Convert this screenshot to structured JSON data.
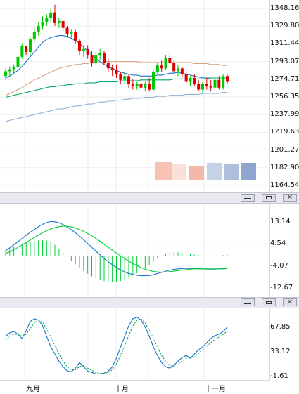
{
  "price_axis": [
    "1348.16",
    "1329.80",
    "1311.44",
    "1293.07",
    "1274.71",
    "1256.35",
    "1237.99",
    "1219.63",
    "1201.27",
    "1182.90",
    "1164.54"
  ],
  "macd_axis": [
    "13.14",
    "4.54",
    "-4.07",
    "-12.67"
  ],
  "osc_axis": [
    "67.85",
    "33.12",
    "-1.61"
  ],
  "x_labels": [
    "九月",
    "十月",
    "十一月"
  ],
  "colors": {
    "up": "#00c800",
    "down": "#e00000",
    "ma_short": "#1a73c9",
    "ma_mid": "#d9a27a",
    "ma_long1": "#00aa66",
    "ma_long2": "#8fb0d8",
    "macd": "#1a73c9",
    "signal": "#00cc33",
    "hist": "#00cc33",
    "osc_main": "#1a73c9",
    "osc_signal": "#00aa44"
  },
  "icons": {
    "minimize": "minimize-icon",
    "maximize": "maximize-icon",
    "close": "close-icon"
  },
  "chart_data": [
    {
      "type": "candlestick",
      "x_labels": [
        "九月",
        "十月",
        "十一月"
      ],
      "ylim": [
        1164.54,
        1348.16
      ],
      "y_ticks": [
        1348.16,
        1329.8,
        1311.44,
        1293.07,
        1274.71,
        1256.35,
        1237.99,
        1219.63,
        1201.27,
        1182.9,
        1164.54
      ],
      "ohlc": [
        [
          1278,
          1286,
          1274,
          1283
        ],
        [
          1283,
          1288,
          1278,
          1285
        ],
        [
          1285,
          1290,
          1280,
          1287
        ],
        [
          1287,
          1300,
          1285,
          1298
        ],
        [
          1298,
          1312,
          1296,
          1309
        ],
        [
          1309,
          1308,
          1300,
          1303
        ],
        [
          1303,
          1318,
          1300,
          1316
        ],
        [
          1316,
          1328,
          1313,
          1324
        ],
        [
          1324,
          1334,
          1320,
          1330
        ],
        [
          1330,
          1340,
          1326,
          1334
        ],
        [
          1334,
          1342,
          1330,
          1338
        ],
        [
          1338,
          1348,
          1334,
          1344
        ],
        [
          1344,
          1352,
          1330,
          1333
        ],
        [
          1333,
          1338,
          1328,
          1335
        ],
        [
          1335,
          1336,
          1325,
          1328
        ],
        [
          1328,
          1330,
          1318,
          1322
        ],
        [
          1322,
          1326,
          1316,
          1324
        ],
        [
          1324,
          1326,
          1312,
          1314
        ],
        [
          1314,
          1316,
          1300,
          1304
        ],
        [
          1304,
          1310,
          1298,
          1306
        ],
        [
          1306,
          1310,
          1296,
          1300
        ],
        [
          1300,
          1304,
          1288,
          1292
        ],
        [
          1292,
          1303,
          1290,
          1300
        ],
        [
          1300,
          1306,
          1295,
          1302
        ],
        [
          1302,
          1304,
          1290,
          1292
        ],
        [
          1292,
          1296,
          1282,
          1286
        ],
        [
          1286,
          1290,
          1278,
          1284
        ],
        [
          1284,
          1290,
          1276,
          1280
        ],
        [
          1280,
          1282,
          1270,
          1274
        ],
        [
          1274,
          1282,
          1270,
          1278
        ],
        [
          1278,
          1280,
          1266,
          1270
        ],
        [
          1270,
          1275,
          1264,
          1268
        ],
        [
          1268,
          1272,
          1264,
          1270
        ],
        [
          1270,
          1273,
          1262,
          1266
        ],
        [
          1266,
          1272,
          1262,
          1270
        ],
        [
          1270,
          1276,
          1262,
          1264
        ],
        [
          1264,
          1284,
          1262,
          1282
        ],
        [
          1282,
          1292,
          1280,
          1289
        ],
        [
          1289,
          1294,
          1282,
          1286
        ],
        [
          1286,
          1300,
          1284,
          1297
        ],
        [
          1297,
          1302,
          1290,
          1292
        ],
        [
          1292,
          1294,
          1280,
          1283
        ],
        [
          1283,
          1290,
          1278,
          1286
        ],
        [
          1286,
          1288,
          1276,
          1280
        ],
        [
          1280,
          1284,
          1270,
          1272
        ],
        [
          1272,
          1278,
          1268,
          1276
        ],
        [
          1276,
          1280,
          1268,
          1270
        ],
        [
          1270,
          1274,
          1262,
          1264
        ],
        [
          1264,
          1272,
          1260,
          1270
        ],
        [
          1270,
          1276,
          1264,
          1268
        ],
        [
          1268,
          1274,
          1262,
          1266
        ],
        [
          1266,
          1276,
          1264,
          1274
        ],
        [
          1274,
          1278,
          1264,
          1266
        ],
        [
          1266,
          1280,
          1264,
          1278
        ],
        [
          1278,
          1280,
          1270,
          1272
        ]
      ],
      "series": [
        {
          "kind": "ma",
          "color": "ma_short",
          "values": [
            1276,
            1278,
            1281,
            1284,
            1288,
            1293,
            1298,
            1303,
            1308,
            1313,
            1316,
            1318,
            1319,
            1320,
            1320,
            1319,
            1317,
            1315,
            1312,
            1308,
            1304,
            1300,
            1296,
            1293,
            1290,
            1288,
            1286,
            1284,
            1282,
            1281,
            1280,
            1279,
            1279,
            1278,
            1278,
            1278,
            1278,
            1279,
            1279,
            1280,
            1281,
            1281,
            1282,
            1281,
            1280,
            1279,
            1278,
            1277,
            1276,
            1276,
            1276,
            1276,
            1276,
            1276,
            1276
          ]
        },
        {
          "kind": "ma",
          "color": "ma_mid",
          "values": [
            1258,
            1260,
            1262,
            1264,
            1266,
            1269,
            1271,
            1274,
            1276,
            1278,
            1280,
            1282,
            1284,
            1286,
            1287,
            1288,
            1289,
            1290,
            1290,
            1291,
            1291,
            1292,
            1292,
            1292,
            1293,
            1293,
            1293,
            1293,
            1293,
            1293,
            1293,
            1293,
            1293,
            1292,
            1292,
            1292,
            1292,
            1292,
            1292,
            1292,
            1292,
            1292,
            1292,
            1292,
            1292,
            1292,
            1291,
            1291,
            1291,
            1291,
            1290,
            1290,
            1290,
            1289,
            1289
          ]
        },
        {
          "kind": "ma",
          "color": "ma_long1",
          "values": [
            1256,
            1257,
            1258,
            1259,
            1260,
            1261,
            1262,
            1263,
            1264,
            1265,
            1266,
            1267,
            1267,
            1268,
            1268,
            1269,
            1269,
            1270,
            1270,
            1270,
            1271,
            1271,
            1271,
            1272,
            1272,
            1272,
            1272,
            1272,
            1273,
            1273,
            1273,
            1273,
            1273,
            1274,
            1274,
            1274,
            1274,
            1274,
            1274,
            1274,
            1274,
            1275,
            1275,
            1275,
            1275,
            1275,
            1275,
            1275,
            1275,
            1275,
            1276,
            1276,
            1276,
            1276,
            1276
          ]
        },
        {
          "kind": "ma",
          "color": "ma_long2",
          "values": [
            1231,
            1232,
            1233,
            1234,
            1235,
            1236,
            1237,
            1238,
            1239,
            1240,
            1241,
            1242,
            1243,
            1244,
            1244,
            1245,
            1246,
            1247,
            1247,
            1248,
            1249,
            1249,
            1250,
            1251,
            1251,
            1252,
            1252,
            1253,
            1253,
            1254,
            1254,
            1255,
            1255,
            1255,
            1256,
            1256,
            1256,
            1257,
            1257,
            1257,
            1258,
            1258,
            1258,
            1258,
            1259,
            1259,
            1259,
            1259,
            1260,
            1260,
            1260,
            1260,
            1260,
            1261,
            1261
          ]
        }
      ]
    },
    {
      "type": "macd",
      "ylim": [
        -12.67,
        13.14
      ],
      "y_ticks": [
        13.14,
        4.54,
        -4.07,
        -12.67
      ],
      "macd": [
        2.0,
        3.0,
        4.2,
        5.4,
        6.7,
        7.9,
        9.1,
        10.2,
        11.3,
        12.2,
        12.9,
        13.3,
        13.2,
        12.8,
        12.1,
        11.2,
        10.1,
        8.9,
        7.6,
        6.2,
        4.7,
        3.2,
        1.7,
        0.3,
        -1.1,
        -2.4,
        -3.6,
        -4.7,
        -5.6,
        -6.4,
        -7.0,
        -7.4,
        -7.7,
        -7.9,
        -7.9,
        -7.8,
        -7.5,
        -7.0,
        -6.6,
        -6.1,
        -5.7,
        -5.4,
        -5.2,
        -5.1,
        -5.0,
        -5.0,
        -5.0,
        -5.1,
        -5.2,
        -5.3,
        -5.3,
        -5.3,
        -5.2,
        -5.1,
        -4.9
      ],
      "signal": [
        0.8,
        1.5,
        2.3,
        3.2,
        4.1,
        5.1,
        6.1,
        7.1,
        8.0,
        8.9,
        9.7,
        10.4,
        10.9,
        11.3,
        11.5,
        11.4,
        11.2,
        10.8,
        10.2,
        9.5,
        8.6,
        7.7,
        6.7,
        5.6,
        4.4,
        3.3,
        2.1,
        1.0,
        -0.1,
        -1.2,
        -2.2,
        -3.1,
        -3.9,
        -4.7,
        -5.3,
        -5.8,
        -6.2,
        -6.4,
        -6.5,
        -6.5,
        -6.3,
        -6.1,
        -5.9,
        -5.7,
        -5.5,
        -5.3,
        -5.2,
        -5.2,
        -5.2,
        -5.2,
        -5.2,
        -5.2,
        -5.2,
        -5.2,
        -5.1
      ]
    },
    {
      "type": "line",
      "ylim": [
        -1.61,
        67.85
      ],
      "y_ticks": [
        67.85,
        33.12,
        -1.61
      ],
      "series": [
        {
          "color": "osc_main",
          "values": [
            55,
            60,
            62,
            58,
            52,
            63,
            76,
            80,
            78,
            70,
            55,
            40,
            30,
            20,
            12,
            6,
            5,
            10,
            18,
            12,
            6,
            4,
            2,
            2,
            3,
            6,
            12,
            24,
            40,
            55,
            70,
            80,
            82,
            78,
            68,
            55,
            40,
            28,
            18,
            12,
            10,
            14,
            20,
            25,
            28,
            24,
            30,
            36,
            40,
            46,
            52,
            56,
            58,
            62,
            68
          ]
        },
        {
          "color": "osc_signal",
          "dash": true,
          "values": [
            50,
            55,
            58,
            58,
            55,
            58,
            66,
            74,
            78,
            75,
            66,
            54,
            42,
            30,
            20,
            12,
            8,
            8,
            12,
            14,
            10,
            7,
            4,
            3,
            3,
            4,
            8,
            16,
            28,
            42,
            56,
            70,
            78,
            80,
            74,
            64,
            52,
            40,
            28,
            20,
            14,
            13,
            16,
            20,
            24,
            25,
            26,
            31,
            36,
            41,
            46,
            51,
            54,
            58,
            62
          ]
        }
      ]
    }
  ]
}
